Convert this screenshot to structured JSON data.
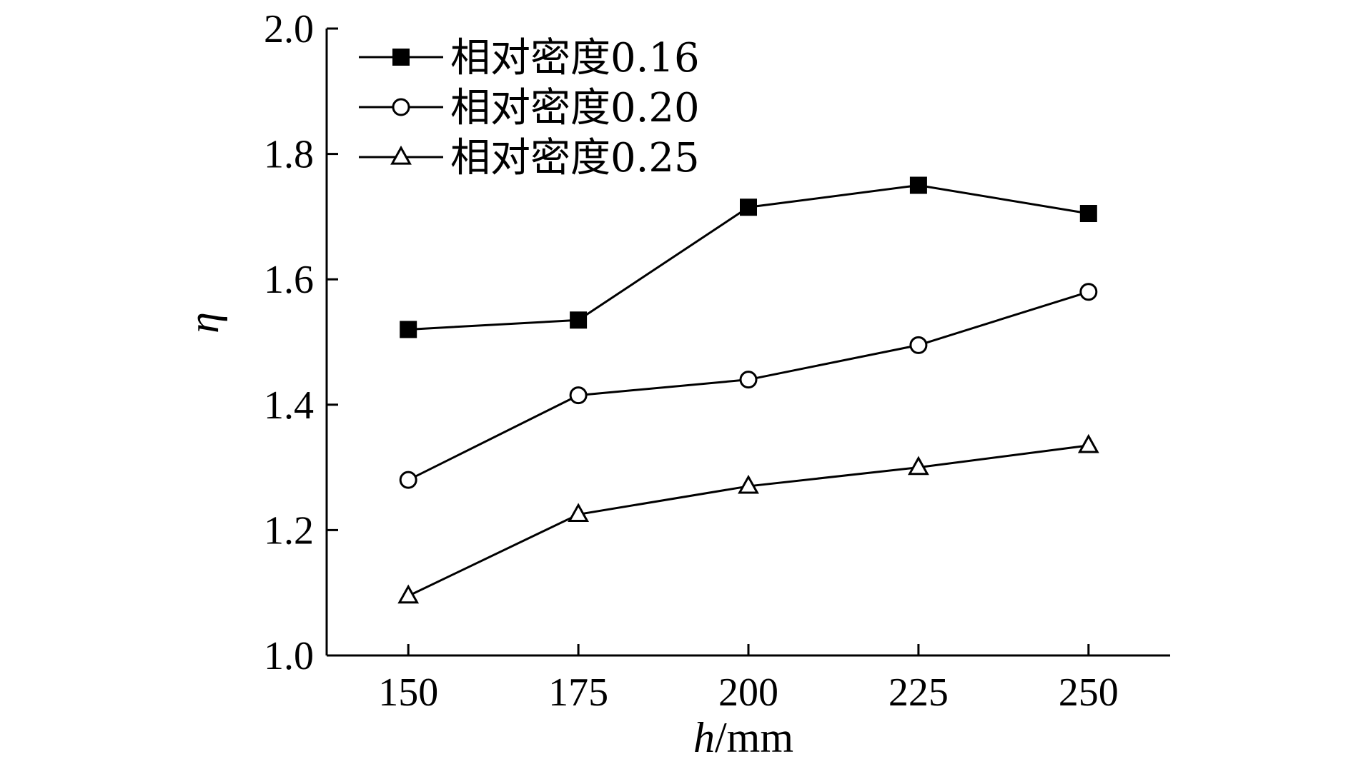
{
  "chart_data": {
    "type": "line",
    "x": [
      150,
      175,
      200,
      225,
      250
    ],
    "xlim": [
      138,
      262
    ],
    "ylim": [
      1.0,
      2.0
    ],
    "xticks": [
      "150",
      "175",
      "200",
      "225",
      "250"
    ],
    "yticks": [
      "1.0",
      "1.2",
      "1.4",
      "1.6",
      "1.8",
      "2.0"
    ],
    "xlabel_italic": "h",
    "xlabel_unit": "/mm",
    "ylabel": "η",
    "grid": false,
    "legend_position": "top-left",
    "series": [
      {
        "name": "相对密度0.16",
        "marker": "filled-square",
        "values": [
          1.52,
          1.535,
          1.715,
          1.75,
          1.705
        ]
      },
      {
        "name": "相对密度0.20",
        "marker": "open-circle",
        "values": [
          1.28,
          1.415,
          1.44,
          1.495,
          1.58
        ]
      },
      {
        "name": "相对密度0.25",
        "marker": "open-triangle",
        "values": [
          1.095,
          1.225,
          1.27,
          1.3,
          1.335
        ]
      }
    ]
  }
}
